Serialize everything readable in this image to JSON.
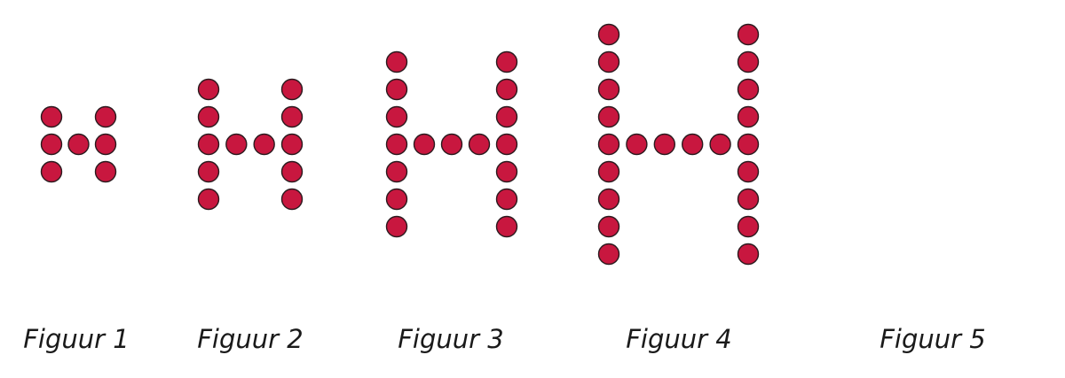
{
  "figures": [
    {
      "label": "Figuur 1",
      "n": 1
    },
    {
      "label": "Figuur 2",
      "n": 2
    },
    {
      "label": "Figuur 3",
      "n": 3
    },
    {
      "label": "Figuur 4",
      "n": 4
    },
    {
      "label": "Figuur 5",
      "n": 5,
      "empty": true
    }
  ],
  "colors": {
    "dot_fill": "#c8173f",
    "dot_stroke": "#2a1a1e",
    "label": "#1a1a1a"
  }
}
